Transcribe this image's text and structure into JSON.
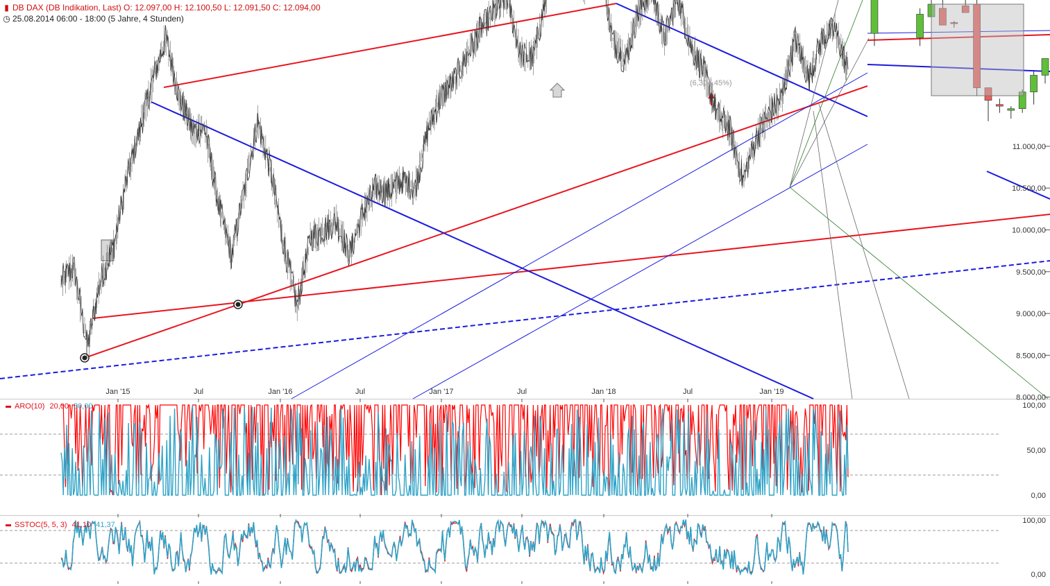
{
  "header": {
    "line1_icon": "candle-icon",
    "line1": "DB DAX (DB Indikation, Last)  O: 12.097,00  H: 12.100,50  L: 12.091,50  C: 12.094,00",
    "line2_icon": "clock-icon",
    "line2": "25.08.2014 06:00 - 18:00  (5 Jahre, 4 Stunden)"
  },
  "colors": {
    "up_candle": "#5fbf3a",
    "down_candle": "#e8605a",
    "trend_red": "#e8141e",
    "trend_blue": "#1a1ae0",
    "aroon_up": "#ff0000",
    "aroon_down": "#2ea3c7",
    "stoch_k": "#e8141e",
    "stoch_d": "#2ea3c7"
  },
  "annotation": "(6,30 (.45%)",
  "chart_data": [
    {
      "type": "line",
      "panel": "price",
      "x_ticks": [
        "Jan '15",
        "Jul",
        "Jan '16",
        "Jul",
        "Jan '17",
        "Jul",
        "Jan '18",
        "Jul",
        "Jan '19"
      ],
      "y_tick_values": [
        8000,
        8500,
        9000,
        9500,
        10000,
        10500,
        11000
      ],
      "y_tick_labels": [
        "8.000,00",
        "8.500,00",
        "9.000,00",
        "9.500,00",
        "10.000,00",
        "10.500,00",
        "11.000,00"
      ],
      "ylim": [
        7980,
        12750
      ],
      "series": [
        {
          "style": "close-line",
          "x": [
            "2014-08",
            "2014-09",
            "2014-10",
            "2014-11",
            "2014-12",
            "2015-01",
            "2015-02",
            "2015-03",
            "2015-04",
            "2015-05",
            "2015-06",
            "2015-07",
            "2015-08",
            "2015-09",
            "2015-10",
            "2015-11",
            "2015-12",
            "2016-01",
            "2016-02",
            "2016-03",
            "2016-04",
            "2016-05",
            "2016-06",
            "2016-07",
            "2016-08",
            "2016-09",
            "2016-10",
            "2016-11",
            "2016-12",
            "2017-01",
            "2017-02",
            "2017-03",
            "2017-04",
            "2017-05",
            "2017-06",
            "2017-07",
            "2017-08",
            "2017-09",
            "2017-10",
            "2017-11",
            "2017-12",
            "2018-01",
            "2018-02",
            "2018-03",
            "2018-04",
            "2018-05",
            "2018-06",
            "2018-07",
            "2018-08",
            "2018-09",
            "2018-10",
            "2018-11",
            "2018-12",
            "2019-01",
            "2019-02",
            "2019-03",
            "2019-04",
            "2019-05",
            "2019-06",
            "2019-07",
            "2019-08"
          ],
          "values": [
            9400,
            9550,
            8600,
            9400,
            9800,
            10600,
            11200,
            11800,
            12300,
            11600,
            11200,
            11200,
            10300,
            9700,
            10500,
            11300,
            10700,
            9800,
            9100,
            9900,
            10000,
            10100,
            9700,
            10200,
            10500,
            10450,
            10600,
            10500,
            11200,
            11600,
            11800,
            12100,
            12400,
            12600,
            12800,
            12100,
            12050,
            12800,
            13200,
            13000,
            12900,
            13400,
            12300,
            12000,
            12600,
            12900,
            12300,
            12800,
            12200,
            11900,
            11400,
            11200,
            10600,
            11100,
            11400,
            11600,
            12300,
            11800,
            12300,
            12400,
            11900
          ]
        },
        {
          "style": "candlestick",
          "values": [
            [
              12350,
              13700,
              12200,
              13600
            ],
            [
              13450,
              13450,
              13000,
              13150
            ],
            [
              13150,
              13200,
              13100,
              13180
            ],
            [
              13000,
              13020,
              12970,
              13000
            ],
            [
              12300,
              12650,
              12200,
              12580
            ],
            [
              12550,
              12800,
              12300,
              12700
            ],
            [
              12650,
              12800,
              12500,
              12450
            ],
            [
              12480,
              12500,
              12420,
              12470
            ],
            [
              12680,
              12750,
              12600,
              12600
            ],
            [
              12700,
              12750,
              11600,
              11700
            ],
            [
              11700,
              11700,
              11300,
              11550
            ],
            [
              11500,
              11570,
              11400,
              11480
            ],
            [
              11430,
              11480,
              11330,
              11450
            ],
            [
              11450,
              11680,
              11400,
              11650
            ],
            [
              11650,
              11900,
              11500,
              11850
            ],
            [
              11850,
              12050,
              11750,
              12050
            ]
          ]
        }
      ]
    },
    {
      "type": "line",
      "panel": "aroon",
      "title": "ARO(10)",
      "series": [
        {
          "name": "20,00",
          "color": "#ff0000",
          "last": 20
        },
        {
          "name": "30,00",
          "color": "#2ea3c7",
          "last": 30
        }
      ],
      "y_tick_values": [
        0,
        50,
        100
      ],
      "y_tick_labels": [
        "0,00",
        "50,00",
        "100,00"
      ],
      "ylim": [
        -10,
        102
      ]
    },
    {
      "type": "line",
      "panel": "stochastic",
      "title": "SSTOC(5, 5, 3)",
      "series": [
        {
          "name": "41,10",
          "color": "#e8141e",
          "last": 41.1
        },
        {
          "name": "41,37",
          "color": "#2ea3c7",
          "last": 41.37
        }
      ],
      "y_tick_values": [
        0,
        100
      ],
      "y_tick_labels": [
        "0,00",
        "100,00"
      ],
      "ylim": [
        -5,
        102
      ]
    }
  ]
}
